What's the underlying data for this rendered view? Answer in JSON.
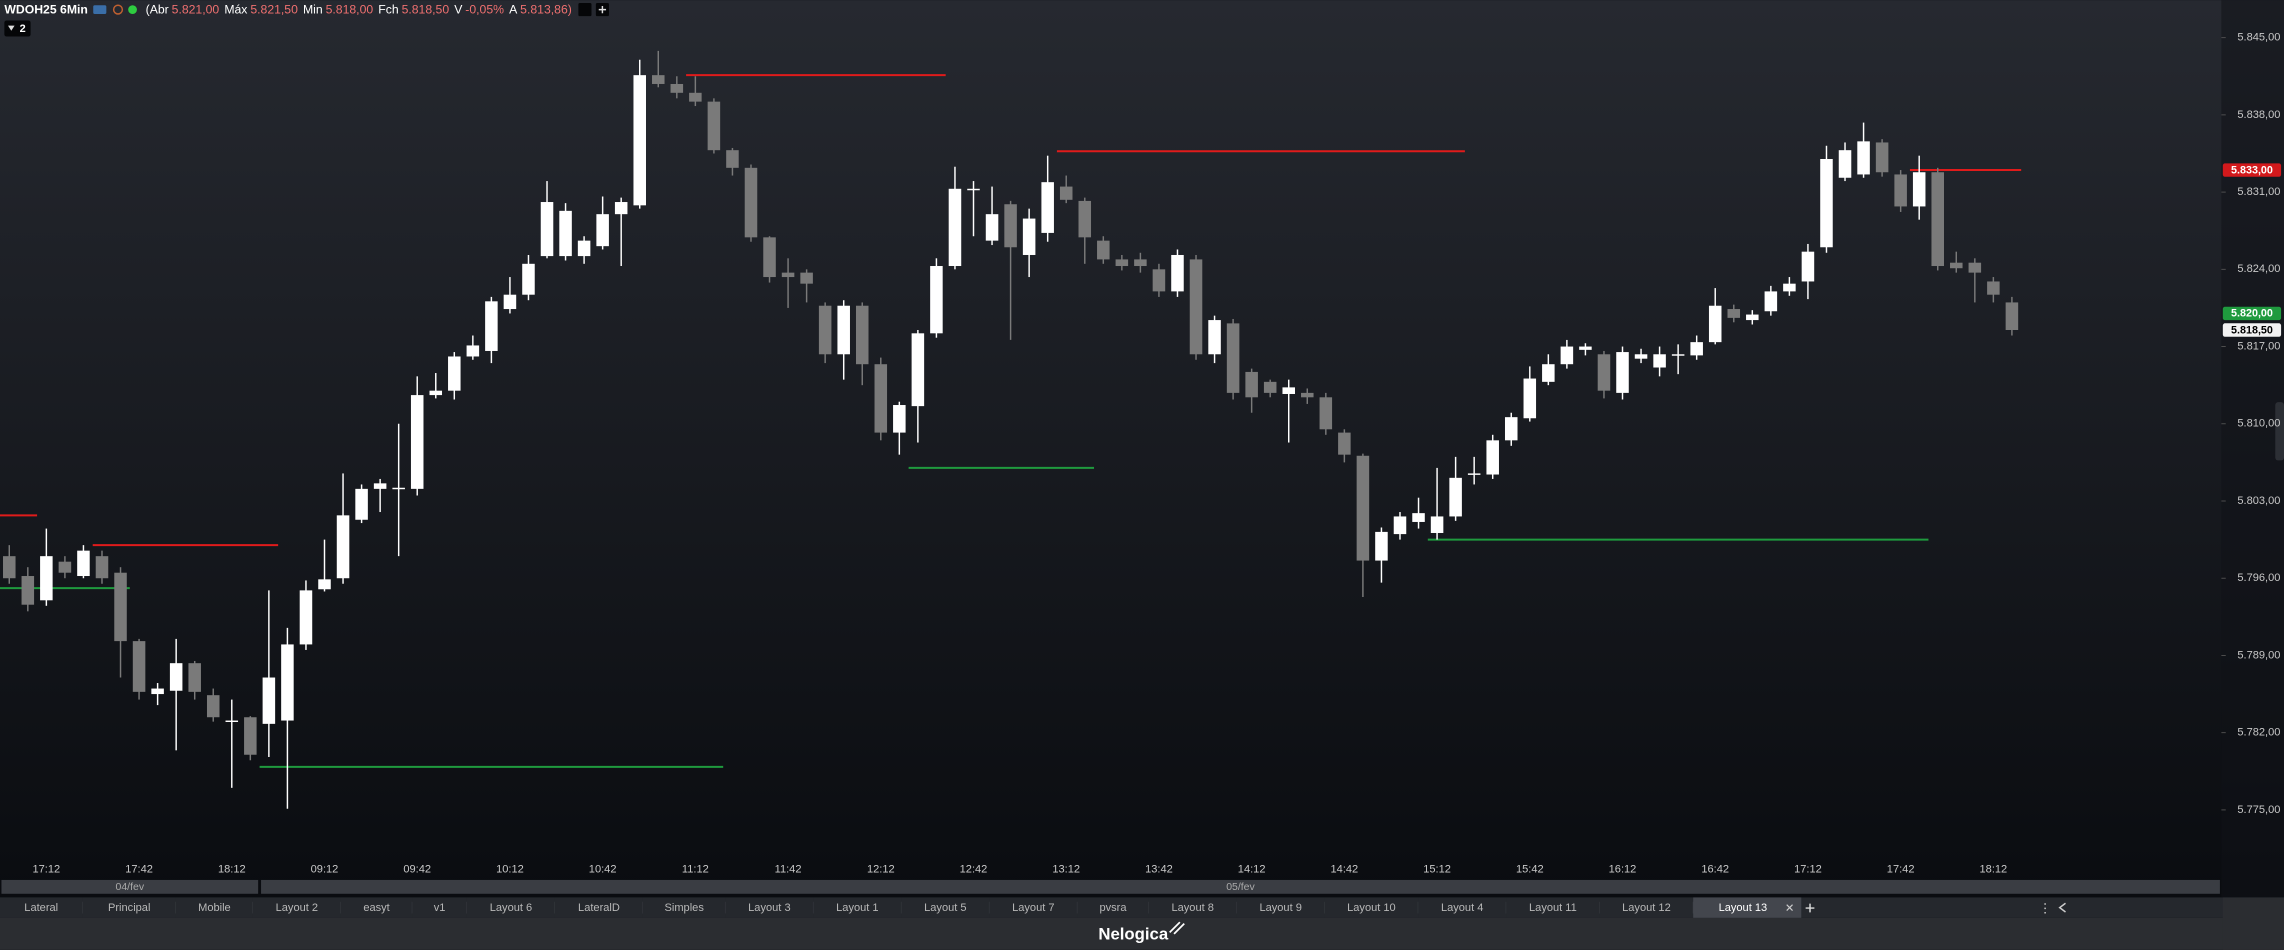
{
  "header": {
    "symbol": "WDOH25 6Min",
    "fields": [
      {
        "label": "(Abr",
        "value": "5.821,00"
      },
      {
        "label": "Máx",
        "value": "5.821,50"
      },
      {
        "label": "Min",
        "value": "5.818,00"
      },
      {
        "label": "Fch",
        "value": "5.818,50"
      },
      {
        "label": "V",
        "value": "-0,05%"
      },
      {
        "label": "A",
        "value": "5.813,86)"
      }
    ],
    "badge": "2"
  },
  "chart_data": {
    "type": "candlestick",
    "up_color": "#ffffff",
    "down_color": "#7a7a7a",
    "categories": [
      null,
      null,
      "17:12",
      null,
      null,
      null,
      null,
      "17:42",
      null,
      null,
      null,
      null,
      "18:12",
      null,
      null,
      null,
      null,
      "09:12",
      null,
      null,
      null,
      null,
      "09:42",
      null,
      null,
      null,
      null,
      "10:12",
      null,
      null,
      null,
      null,
      "10:42",
      null,
      null,
      null,
      null,
      "11:12",
      null,
      null,
      null,
      null,
      "11:42",
      null,
      null,
      null,
      null,
      "12:12",
      null,
      null,
      null,
      null,
      "12:42",
      null,
      null,
      null,
      null,
      "13:12",
      null,
      null,
      null,
      null,
      "13:42",
      null,
      null,
      null,
      null,
      "14:12",
      null,
      null,
      null,
      null,
      "14:42",
      null,
      null,
      null,
      null,
      "15:12",
      null,
      null,
      null,
      null,
      "15:42",
      null,
      null,
      null,
      null,
      "16:12",
      null,
      null,
      null,
      null,
      "16:42",
      null,
      null,
      null,
      null,
      "17:12",
      null,
      null,
      null,
      null,
      "17:42",
      null,
      null,
      null,
      null,
      "18:12",
      null
    ],
    "open": [
      5798,
      5796.2,
      5794,
      5797.5,
      5796.2,
      5798,
      5796.5,
      5790.3,
      5785.5,
      5785.8,
      5788.3,
      5785.4,
      5783.1,
      5783.4,
      5782.8,
      5783.1,
      5790,
      5795,
      5796,
      5801.3,
      5804.1,
      5804.2,
      5804.1,
      5812.6,
      5813,
      5816.1,
      5816.6,
      5820.4,
      5821.7,
      5825.2,
      5825.2,
      5825.2,
      5826.1,
      5829,
      5829.8,
      5841.6,
      5840.8,
      5840,
      5839.2,
      5834.8,
      5833.2,
      5826.9,
      5823.7,
      5823.7,
      5820.7,
      5816.3,
      5820.7,
      5815.4,
      5809.2,
      5811.6,
      5818.2,
      5824.3,
      5831.3,
      5826.6,
      5829.9,
      5825.3,
      5827.3,
      5831.5,
      5830.2,
      5826.6,
      5824.9,
      5824.9,
      5824,
      5822,
      5824.9,
      5816.3,
      5819.1,
      5814.7,
      5813.8,
      5812.7,
      5812.8,
      5812.4,
      5809.2,
      5807.1,
      5797.6,
      5800,
      5801.1,
      5800.1,
      5801.6,
      5805.5,
      5805.4,
      5808.5,
      5810.5,
      5813.8,
      5815.4,
      5816.7,
      5816.3,
      5812.8,
      5815.9,
      5815.1,
      5816.3,
      5816.2,
      5817.4,
      5820.4,
      5819.4,
      5820.2,
      5822,
      5822.9,
      5826,
      5832.3,
      5832.6,
      5835.5,
      5832.6,
      5829.7,
      5832.8,
      5824.6,
      5824.6,
      5822.9,
      5821
    ],
    "high": [
      5799,
      5797,
      5800.5,
      5798,
      5799,
      5798.5,
      5797,
      5790.5,
      5786.5,
      5790.5,
      5788.5,
      5786,
      5785,
      5783.5,
      5794.9,
      5791.5,
      5795.8,
      5799.5,
      5805.5,
      5804.5,
      5805,
      5810,
      5814.3,
      5814.6,
      5816.5,
      5818,
      5821.5,
      5823.3,
      5825.3,
      5832,
      5830,
      5827,
      5830.6,
      5830.5,
      5843,
      5843.8,
      5841.5,
      5841.5,
      5839.5,
      5835,
      5833.5,
      5827,
      5825,
      5824,
      5821,
      5821.2,
      5821,
      5816,
      5812,
      5818.5,
      5825,
      5833.3,
      5832,
      5831.5,
      5830.2,
      5829.5,
      5834.3,
      5832.5,
      5830.5,
      5827,
      5825.3,
      5825.5,
      5824.5,
      5825.8,
      5825.3,
      5819.8,
      5819.5,
      5815,
      5814,
      5814,
      5813.2,
      5812.8,
      5809.5,
      5807.3,
      5800.6,
      5802,
      5803.3,
      5806,
      5807,
      5807,
      5809,
      5811,
      5815.2,
      5816.3,
      5817.6,
      5817.3,
      5816.6,
      5817,
      5816.8,
      5817,
      5817.2,
      5818,
      5822.3,
      5820.8,
      5820.3,
      5822.5,
      5823.3,
      5826.3,
      5835.2,
      5835.5,
      5837.3,
      5835.8,
      5833,
      5834.3,
      5833.2,
      5825.6,
      5825,
      5823.3,
      5821.5
    ],
    "low": [
      5795.5,
      5793,
      5793.5,
      5796,
      5796,
      5795.5,
      5787,
      5785,
      5784.5,
      5780.4,
      5785,
      5783,
      5777,
      5779.5,
      5779.8,
      5775.1,
      5789.5,
      5794.8,
      5795.5,
      5801,
      5802,
      5798,
      5803.5,
      5812.3,
      5812.2,
      5815.8,
      5815.5,
      5820,
      5821.2,
      5825,
      5824.8,
      5824.5,
      5825.8,
      5824.3,
      5829.5,
      5840.5,
      5839.5,
      5838.8,
      5834.5,
      5832.5,
      5826.5,
      5822.8,
      5820.5,
      5821,
      5815.5,
      5814,
      5813.5,
      5808.5,
      5807.2,
      5808.3,
      5817.8,
      5824,
      5827,
      5826.2,
      5817.6,
      5823.3,
      5826.5,
      5830,
      5824.5,
      5824.5,
      5823.9,
      5823.7,
      5821.5,
      5821.5,
      5815.8,
      5815.5,
      5812.2,
      5811,
      5812.4,
      5808.3,
      5811.8,
      5809,
      5806.5,
      5794.3,
      5795.6,
      5799.5,
      5800.5,
      5799.5,
      5801.2,
      5804.5,
      5805,
      5808,
      5810.2,
      5813.5,
      5815,
      5816.2,
      5812.3,
      5812.2,
      5815.5,
      5814.3,
      5814.5,
      5815.8,
      5817.2,
      5819.2,
      5819,
      5819.8,
      5821.6,
      5821.3,
      5825.5,
      5832,
      5832.3,
      5832.4,
      5829.2,
      5828.5,
      5823.9,
      5823.7,
      5821,
      5821,
      5818
    ],
    "close": [
      5796,
      5793.6,
      5798,
      5796.5,
      5798.5,
      5796,
      5790.3,
      5785.7,
      5786,
      5788.3,
      5785.7,
      5783.4,
      5783.1,
      5780,
      5787,
      5790,
      5794.9,
      5795.9,
      5801.7,
      5804.1,
      5804.6,
      5804.2,
      5812.6,
      5813,
      5816.1,
      5817.1,
      5821.1,
      5821.7,
      5824.5,
      5830.1,
      5829.3,
      5826.6,
      5829,
      5830.1,
      5841.6,
      5840.8,
      5840,
      5839.2,
      5834.8,
      5833.2,
      5826.9,
      5823.3,
      5823.3,
      5822.7,
      5816.3,
      5820.7,
      5815.4,
      5809.2,
      5811.7,
      5818.2,
      5824.3,
      5831.3,
      5831.3,
      5829,
      5826,
      5828.6,
      5831.9,
      5830.3,
      5826.9,
      5824.9,
      5824.3,
      5824.3,
      5822,
      5825.3,
      5816.3,
      5819.4,
      5812.8,
      5812.4,
      5812.8,
      5813.3,
      5812.4,
      5809.5,
      5807.2,
      5797.6,
      5800.2,
      5801.6,
      5801.9,
      5801.6,
      5805.1,
      5805.5,
      5808.5,
      5810.6,
      5814.1,
      5815.4,
      5817,
      5817,
      5813,
      5816.5,
      5816.3,
      5816.3,
      5816.3,
      5817.4,
      5820.7,
      5819.6,
      5819.9,
      5822,
      5822.7,
      5825.6,
      5834,
      5834.8,
      5835.6,
      5832.8,
      5829.7,
      5832.8,
      5824.3,
      5824.1,
      5823.7,
      5821.7,
      5818.5
    ],
    "ylim": [
      5770.5,
      5848.4
    ],
    "yticks": [
      {
        "value": 5845,
        "label": "5.845,00"
      },
      {
        "value": 5838,
        "label": "5.838,00"
      },
      {
        "value": 5831,
        "label": "5.831,00"
      },
      {
        "value": 5824,
        "label": "5.824,00"
      },
      {
        "value": 5817,
        "label": "5.817,00"
      },
      {
        "value": 5810,
        "label": "5.810,00"
      },
      {
        "value": 5803,
        "label": "5.803,00"
      },
      {
        "value": 5796,
        "label": "5.796,00"
      },
      {
        "value": 5789,
        "label": "5.789,00"
      },
      {
        "value": 5782,
        "label": "5.782,00"
      },
      {
        "value": 5775,
        "label": "5.775,00"
      }
    ],
    "price_tags": [
      {
        "value": 5833,
        "label": "5.833,00",
        "color": "#d3191c",
        "text_color": "#ffffff"
      },
      {
        "value": 5820,
        "label": "5.820,00",
        "color": "#1f9a3e",
        "text_color": "#ffffff"
      },
      {
        "value": 5818.5,
        "label": "5.818,50",
        "color": "#f2f2f2",
        "text_color": "#000000"
      }
    ],
    "levels": [
      {
        "price": 5801.7,
        "from": 0,
        "to": 1,
        "color": "#e01b1b"
      },
      {
        "price": 5799,
        "from": 5,
        "to": 14,
        "color": "#e01b1b"
      },
      {
        "price": 5841.6,
        "from": 37,
        "to": 50,
        "color": "#e01b1b"
      },
      {
        "price": 5834.7,
        "from": 57,
        "to": 78,
        "color": "#e01b1b"
      },
      {
        "price": 5833,
        "from": 103,
        "to": 108,
        "color": "#e01b1b"
      },
      {
        "price": 5795.1,
        "from": 0,
        "to": 6,
        "color": "#1f9a3e"
      },
      {
        "price": 5778.9,
        "from": 14,
        "to": 38,
        "color": "#1f9a3e"
      },
      {
        "price": 5806,
        "from": 49,
        "to": 58,
        "color": "#1f9a3e"
      },
      {
        "price": 5799.5,
        "from": 77,
        "to": 103,
        "color": "#1f9a3e"
      }
    ],
    "dates": [
      {
        "label": "04/fev",
        "from": 0,
        "to": 13
      },
      {
        "label": "05/fev",
        "from": 14,
        "to": 108
      }
    ]
  },
  "tabs": {
    "items": [
      "Lateral",
      "Principal",
      "Mobile",
      "Layout 2",
      "easyt",
      "v1",
      "Layout 6",
      "LateralD",
      "Simples",
      "Layout 3",
      "Layout 1",
      "Layout 5",
      "Layout 7",
      "pvsra",
      "Layout 8",
      "Layout 9",
      "Layout 10",
      "Layout 4",
      "Layout 11",
      "Layout 12",
      "Layout 13"
    ],
    "active_index": 20
  },
  "footer": {
    "brand": "Nelogica"
  }
}
